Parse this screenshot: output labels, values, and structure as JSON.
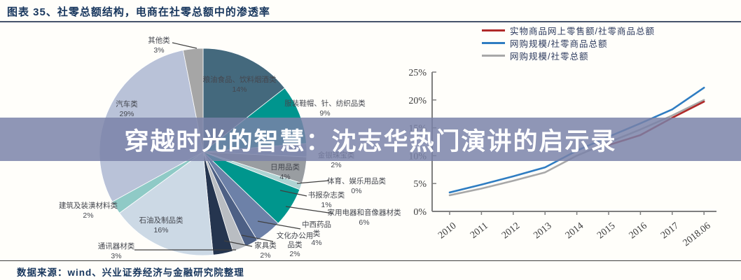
{
  "header": {
    "title": "图表 35、社零总额结构，电商在社零总额中的渗透率"
  },
  "overlay": {
    "text": "穿越时光的智慧：沈志华热门演讲的启示录"
  },
  "footer": {
    "source": "数据来源：wind、兴业证券经济与金融研究院整理"
  },
  "chart_data": [
    {
      "type": "pie",
      "title": "社零总额结构",
      "slices": [
        {
          "name": "粮油食品、饮料烟酒类",
          "value": 14,
          "color": "#44697d"
        },
        {
          "name": "服装鞋帽、针、纺织品类",
          "value": 9,
          "color": "#00958e"
        },
        {
          "name": "金银珠宝类",
          "value": 2,
          "color": "#9fb0c8"
        },
        {
          "name": "日用品类",
          "value": 4,
          "color": "#999da1"
        },
        {
          "name": "体育、娱乐用品类",
          "value": 0,
          "color": "#3f4a5a"
        },
        {
          "name": "书报杂志类",
          "value": 1,
          "color": "#aed3d3"
        },
        {
          "name": "家用电器和音像器材类",
          "value": 6,
          "color": "#00968d"
        },
        {
          "name": "中西药品类",
          "value": 4,
          "color": "#6d81a8"
        },
        {
          "name": "文化办公用品类",
          "value": 2,
          "color": "#4d6085"
        },
        {
          "name": "家具类",
          "value": 2,
          "color": "#b9bdc2"
        },
        {
          "name": "通讯器材类",
          "value": 3,
          "color": "#25354f"
        },
        {
          "name": "石油及制品类",
          "value": 16,
          "color": "#ccd9e5"
        },
        {
          "name": "建筑及装潢材料类",
          "value": 2,
          "color": "#8fcac6"
        },
        {
          "name": "汽车类",
          "value": 29,
          "color": "#b9c2d8"
        },
        {
          "name": "其他类",
          "value": 3,
          "color": "#a6a6a6"
        }
      ]
    },
    {
      "type": "line",
      "x": [
        "2010",
        "2011",
        "2012",
        "2013",
        "2014",
        "2015",
        "2016",
        "2017",
        "2018.06"
      ],
      "ylim": [
        0,
        25
      ],
      "ytick_step": 5,
      "yticks": [
        "0%",
        "5%",
        "10%",
        "15%",
        "20%",
        "25%"
      ],
      "grid": false,
      "legend_position": "top-right",
      "series": [
        {
          "name": "实物商品网上零售额/社零商品总额",
          "color": "#b02a2a",
          "values": [
            null,
            null,
            null,
            null,
            null,
            11.9,
            13.7,
            16.8,
            19.7
          ]
        },
        {
          "name": "网购规模/社零商品总额",
          "color": "#2f7dc2",
          "values": [
            3.4,
            4.8,
            6.3,
            7.9,
            10.9,
            13.4,
            15.8,
            18.3,
            22.2
          ]
        },
        {
          "name": "网购规模/社零总额",
          "color": "#a8a8a8",
          "values": [
            2.9,
            4.1,
            5.5,
            7.0,
            10.0,
            12.4,
            14.7,
            17.2,
            20.0
          ]
        }
      ]
    }
  ]
}
